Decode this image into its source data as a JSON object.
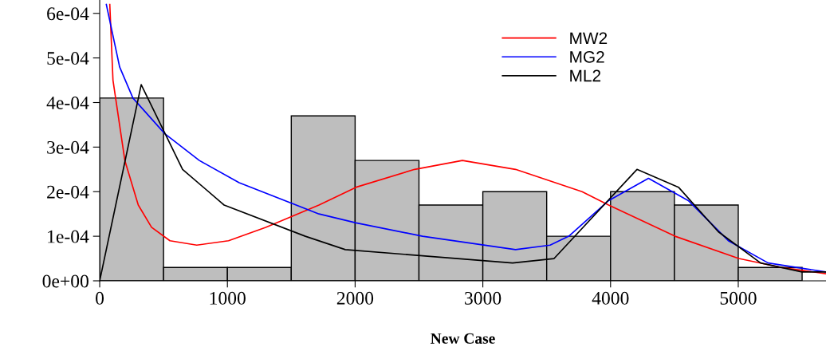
{
  "chart_data": {
    "type": "histogram",
    "xlabel": "New Case",
    "bins": [
      0,
      500,
      1000,
      1500,
      2000,
      2500,
      3000,
      3500,
      4000,
      4500,
      5000,
      5500
    ],
    "values": [
      0.00041,
      3e-05,
      3e-05,
      0.00037,
      0.00027,
      0.00017,
      0.0002,
      0.0001,
      0.0002,
      0.00017,
      3e-05
    ],
    "color": "#bebebe",
    "series": [
      {
        "name": "MW2",
        "type": "line",
        "color": "#ff0000",
        "x": [
          79,
          104,
          197,
          302,
          406,
          550,
          760,
          1009,
          1300,
          1717,
          2008,
          2466,
          2840,
          3256,
          3777,
          3985,
          4505,
          5004,
          5337,
          5687
        ],
        "values": [
          0.00062,
          0.00045,
          0.00027,
          0.00017,
          0.00012,
          9e-05,
          8e-05,
          9e-05,
          0.00012,
          0.00017,
          0.00021,
          0.00025,
          0.00027,
          0.00025,
          0.0002,
          0.00017,
          0.0001,
          5e-05,
          3e-05,
          1.6e-05
        ]
      },
      {
        "name": "MG2",
        "type": "line",
        "color": "#0000ff",
        "x": [
          52,
          156,
          260,
          510,
          780,
          1092,
          1717,
          2008,
          2528,
          3256,
          3527,
          3673,
          3985,
          4297,
          4609,
          4922,
          5234,
          5687
        ],
        "values": [
          0.00062,
          0.00048,
          0.00041,
          0.00033,
          0.00027,
          0.00022,
          0.00015,
          0.00013,
          0.0001,
          7e-05,
          8e-05,
          0.0001,
          0.00018,
          0.00023,
          0.00018,
          9e-05,
          4e-05,
          2e-05
        ]
      },
      {
        "name": "ML2",
        "type": "line",
        "color": "#000000",
        "x": [
          0,
          325,
          649,
          974,
          1610,
          1923,
          3233,
          3558,
          4207,
          4532,
          4844,
          5175,
          5499,
          5687
        ],
        "values": [
          0,
          0.00044,
          0.00025,
          0.00017,
          0.0001,
          7e-05,
          4e-05,
          5e-05,
          0.00025,
          0.00021,
          0.00011,
          4e-05,
          2e-05,
          2e-05
        ]
      }
    ],
    "xlim": [
      0,
      5687
    ],
    "ylim": [
      0,
      0.00063
    ],
    "xticks": [
      0,
      1000,
      2000,
      3000,
      4000,
      5000
    ],
    "yticks": [
      {
        "value": 0,
        "label": "0e+00"
      },
      {
        "value": 0.0001,
        "label": "1e-04"
      },
      {
        "value": 0.0002,
        "label": "2e-04"
      },
      {
        "value": 0.0003,
        "label": "3e-04"
      },
      {
        "value": 0.0004,
        "label": "4e-04"
      },
      {
        "value": 0.0005,
        "label": "5e-04"
      },
      {
        "value": 0.0006,
        "label": "6e-04"
      }
    ],
    "grid": false,
    "legend": "top right"
  }
}
